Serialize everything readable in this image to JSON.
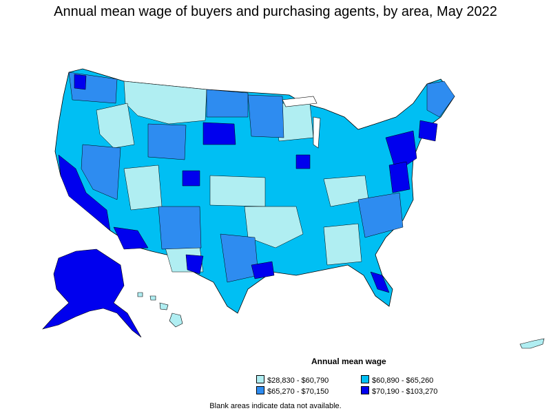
{
  "title": "Annual mean wage of buyers and purchasing agents, by area, May 2022",
  "legend": {
    "title": "Annual mean wage",
    "items": [
      {
        "label": "$28,830 - $60,790",
        "color": "#b0eef2"
      },
      {
        "label": "$60,890 - $65,260",
        "color": "#00bff3"
      },
      {
        "label": "$65,270 - $70,150",
        "color": "#2e8cf0"
      },
      {
        "label": "$70,190 - $103,270",
        "color": "#0000ee"
      }
    ]
  },
  "footnote": "Blank areas indicate data not available."
}
